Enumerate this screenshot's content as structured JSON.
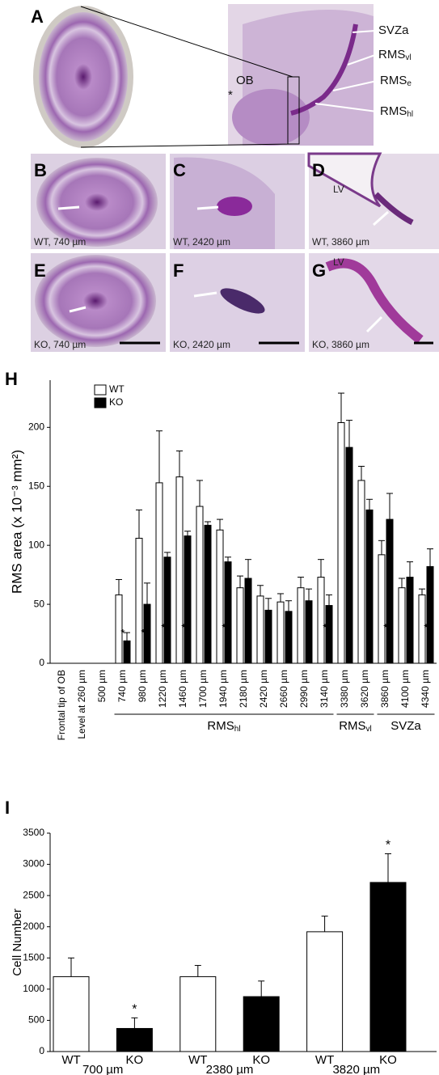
{
  "figure": {
    "A": {
      "letter": "A",
      "ob": "OB",
      "star": "*",
      "svza": "SVZa",
      "rmsvl": {
        "name": "RMS",
        "sub": "vl"
      },
      "rmse": {
        "name": "RMS",
        "sub": "e"
      },
      "rmshl": {
        "name": "RMS",
        "sub": "hl"
      }
    },
    "B": {
      "letter": "B",
      "caption": "WT, 740 µm"
    },
    "C": {
      "letter": "C",
      "caption": "WT, 2420 µm"
    },
    "D": {
      "letter": "D",
      "caption": "WT, 3860 µm",
      "lv": "LV"
    },
    "E": {
      "letter": "E",
      "caption": "KO, 740 µm"
    },
    "F": {
      "letter": "F",
      "caption": "KO, 2420 µm"
    },
    "G": {
      "letter": "G",
      "caption": "KO, 3860 µm",
      "lv": "LV"
    }
  },
  "chart_data": [
    {
      "type": "bar",
      "panel": "H",
      "ylabel": "RMS area (x 10⁻³ mm²)",
      "categories": [
        "Frontal tip of OB",
        "Level at 260 µm",
        "500 µm",
        "740 µm",
        "980 µm",
        "1220 µm",
        "1460 µm",
        "1700 µm",
        "1940 µm",
        "2180 µm",
        "2420 µm",
        "2660 µm",
        "2990 µm",
        "3140 µm",
        "3380 µm",
        "3620 µm",
        "3860 µm",
        "4100 µm",
        "4340 µm"
      ],
      "significance": [
        null,
        null,
        null,
        "*",
        "*",
        "*",
        "*",
        null,
        "*",
        null,
        null,
        null,
        null,
        "*",
        null,
        null,
        "*",
        null,
        "*"
      ],
      "series": [
        {
          "name": "WT",
          "color": "#ffffff",
          "values": [
            null,
            null,
            null,
            58,
            106,
            153,
            158,
            133,
            113,
            64,
            57,
            52,
            64,
            73,
            204,
            155,
            92,
            64,
            58
          ],
          "errors": [
            null,
            null,
            null,
            13,
            24,
            44,
            22,
            22,
            9,
            10,
            9,
            7,
            9,
            15,
            25,
            12,
            12,
            8,
            5
          ]
        },
        {
          "name": "KO",
          "color": "#000000",
          "values": [
            null,
            null,
            null,
            19,
            50,
            90,
            108,
            117,
            86,
            72,
            45,
            44,
            53,
            49,
            183,
            130,
            122,
            73,
            82
          ],
          "errors": [
            null,
            null,
            null,
            7,
            18,
            4,
            4,
            3,
            4,
            16,
            10,
            9,
            10,
            9,
            23,
            9,
            22,
            13,
            15
          ]
        }
      ],
      "groups": [
        {
          "name": "RMS",
          "sub": "hl"
        },
        {
          "name": "RMS",
          "sub": "vl"
        },
        {
          "name": "SVZa"
        }
      ],
      "ylim": [
        0,
        240
      ],
      "yticks": [
        0,
        50,
        100,
        150,
        200
      ],
      "legend": "upper left"
    },
    {
      "type": "bar",
      "panel": "I",
      "ylabel": "Cell Number",
      "categories": [
        "WT",
        "KO",
        "WT",
        "KO",
        "WT",
        "KO"
      ],
      "significance": [
        null,
        "*",
        null,
        null,
        null,
        "*"
      ],
      "values": [
        1200,
        370,
        1200,
        880,
        1920,
        2710
      ],
      "errors": [
        300,
        170,
        180,
        250,
        250,
        460
      ],
      "colors": [
        "#ffffff",
        "#000000",
        "#ffffff",
        "#000000",
        "#ffffff",
        "#000000"
      ],
      "groups": [
        {
          "name": "700 µm"
        },
        {
          "name": "2380 µm"
        },
        {
          "name": "3820 µm"
        }
      ],
      "ylim": [
        0,
        3500
      ],
      "yticks": [
        0,
        500,
        1000,
        1500,
        2000,
        2500,
        3000,
        3500
      ]
    }
  ]
}
